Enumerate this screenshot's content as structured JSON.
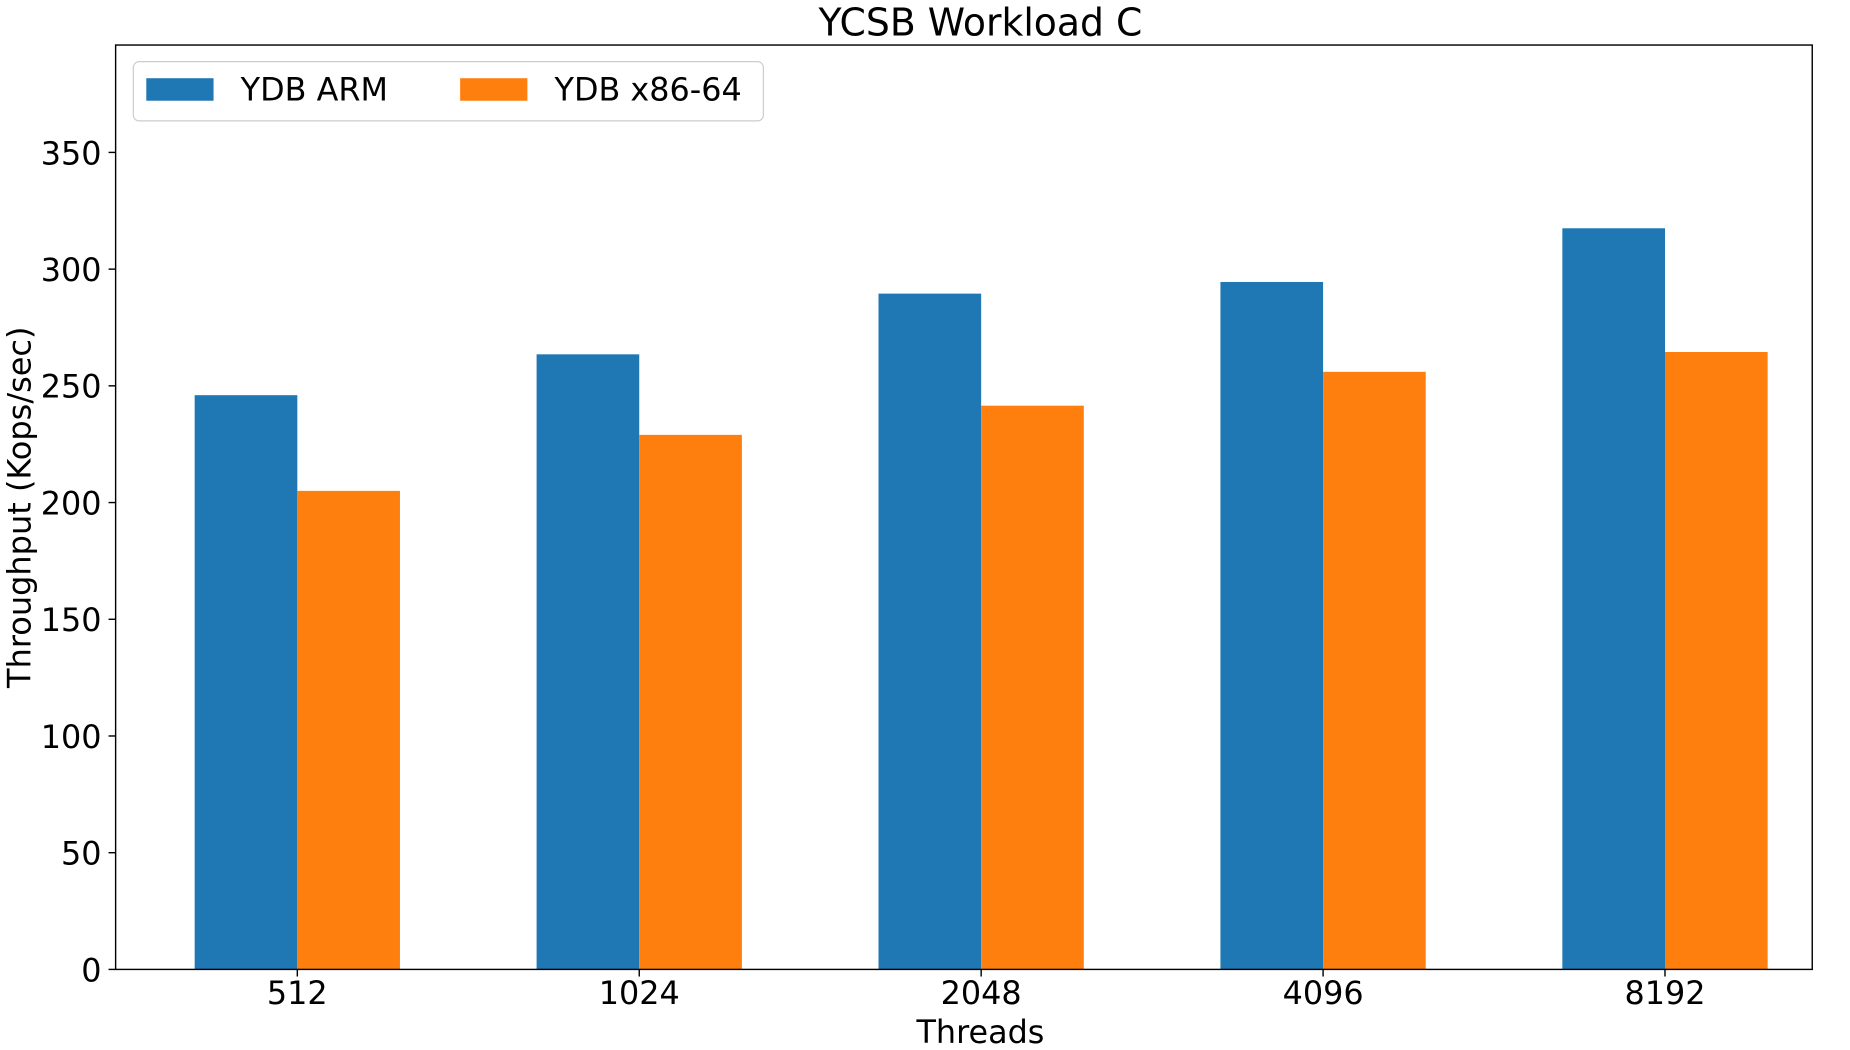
{
  "chart_data": {
    "type": "bar",
    "title": "YCSB Workload C",
    "xlabel": "Threads",
    "ylabel": "Throughput (Kops/sec)",
    "categories": [
      "512",
      "1024",
      "2048",
      "4096",
      "8192"
    ],
    "series": [
      {
        "name": "YDB ARM",
        "color": "#1f77b4",
        "values": [
          246,
          263.5,
          289.5,
          294.5,
          317.5
        ]
      },
      {
        "name": "YDB x86-64",
        "color": "#ff7f0e",
        "values": [
          205,
          229,
          241.5,
          256,
          264.5
        ]
      }
    ],
    "ylim": [
      0,
      396
    ],
    "yticks": [
      "0",
      "50",
      "100",
      "150",
      "200",
      "250",
      "300",
      "350"
    ],
    "legend_position": "top-left",
    "grid": false
  }
}
